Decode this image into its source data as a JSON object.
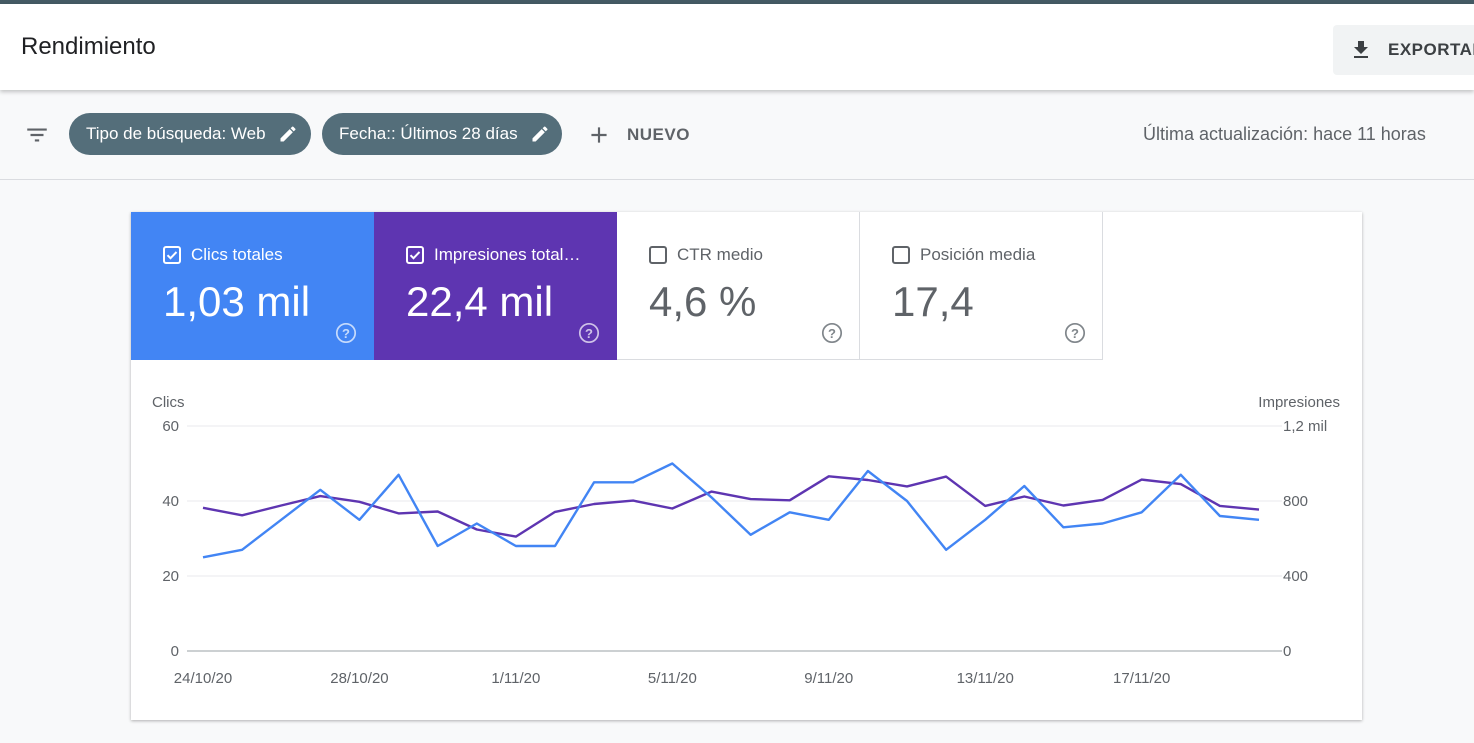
{
  "header": {
    "title": "Rendimiento",
    "export_label": "EXPORTAR",
    "export_icon": "download-icon"
  },
  "filters": {
    "filter_icon": "filter-list-icon",
    "chips": [
      {
        "label": "Tipo de búsqueda: Web",
        "icon": "edit-icon"
      },
      {
        "label": "Fecha:: Últimos 28 días",
        "icon": "edit-icon"
      }
    ],
    "new_label": "NUEVO",
    "last_update": "Última actualización: hace 11 horas"
  },
  "metrics": [
    {
      "label": "Clics totales",
      "value": "1,03 mil",
      "checked": true,
      "color": "#4285f4"
    },
    {
      "label": "Impresiones total…",
      "value": "22,4 mil",
      "checked": true,
      "color": "#5e35b1"
    },
    {
      "label": "CTR medio",
      "value": "4,6 %",
      "checked": false
    },
    {
      "label": "Posición media",
      "value": "17,4",
      "checked": false
    }
  ],
  "chart_data": {
    "type": "line",
    "ylabel": "Clics",
    "y2label": "Impresiones",
    "ylim": [
      0,
      60
    ],
    "yticks": [
      "0",
      "20",
      "40",
      "60"
    ],
    "y2lim": [
      0,
      1200
    ],
    "y2ticks": [
      "0",
      "400",
      "800",
      "1,2 mil"
    ],
    "x_tick_labels": [
      "24/10/20",
      "28/10/20",
      "1/11/20",
      "5/11/20",
      "9/11/20",
      "13/11/20",
      "17/11/20"
    ],
    "grid": true,
    "series": [
      {
        "name": "Clics",
        "axis": "left",
        "color": "#4285f4",
        "values": [
          25,
          27,
          35,
          43,
          35,
          47,
          28,
          34,
          28,
          28,
          45,
          45,
          50,
          41,
          31,
          37,
          35,
          48,
          40,
          27,
          35,
          44,
          33,
          34,
          37,
          47,
          36,
          35
        ]
      },
      {
        "name": "Impresiones",
        "axis": "right",
        "color": "#5e35b1",
        "values": [
          764,
          724,
          776,
          826,
          796,
          734,
          744,
          648,
          610,
          742,
          784,
          802,
          760,
          850,
          810,
          804,
          932,
          912,
          878,
          930,
          774,
          824,
          776,
          806,
          914,
          890,
          774,
          754
        ]
      }
    ]
  }
}
